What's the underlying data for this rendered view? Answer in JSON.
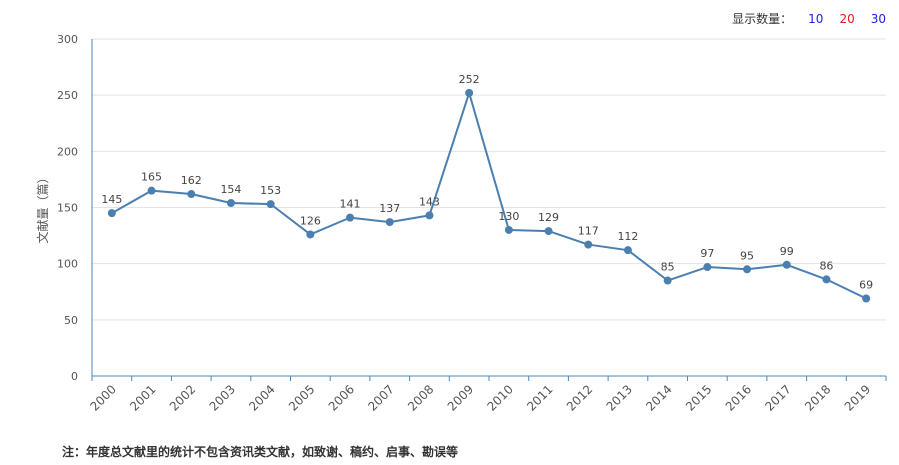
{
  "display_count": {
    "label": "显示数量：",
    "options": [
      "10",
      "20",
      "30"
    ]
  },
  "note": "注：年度总文献里的统计不包含资讯类文献，如致谢、稿约、启事、勘误等",
  "colors": {
    "line": "#4a7fb0",
    "axis": "#4a8ab8",
    "grid": "#e3e3e3",
    "label": "#555555"
  },
  "chart_data": {
    "type": "line",
    "title": "",
    "xlabel": "",
    "ylabel": "文献量（篇）",
    "ylim": [
      0,
      300
    ],
    "yticks": [
      0,
      50,
      100,
      150,
      200,
      250,
      300
    ],
    "grid": true,
    "categories": [
      "2000",
      "2001",
      "2002",
      "2003",
      "2004",
      "2005",
      "2006",
      "2007",
      "2008",
      "2009",
      "2010",
      "2011",
      "2012",
      "2013",
      "2014",
      "2015",
      "2016",
      "2017",
      "2018",
      "2019"
    ],
    "series": [
      {
        "values": [
          145,
          165,
          162,
          154,
          153,
          126,
          141,
          137,
          143,
          252,
          130,
          129,
          117,
          112,
          85,
          97,
          95,
          99,
          86,
          69
        ]
      }
    ]
  }
}
